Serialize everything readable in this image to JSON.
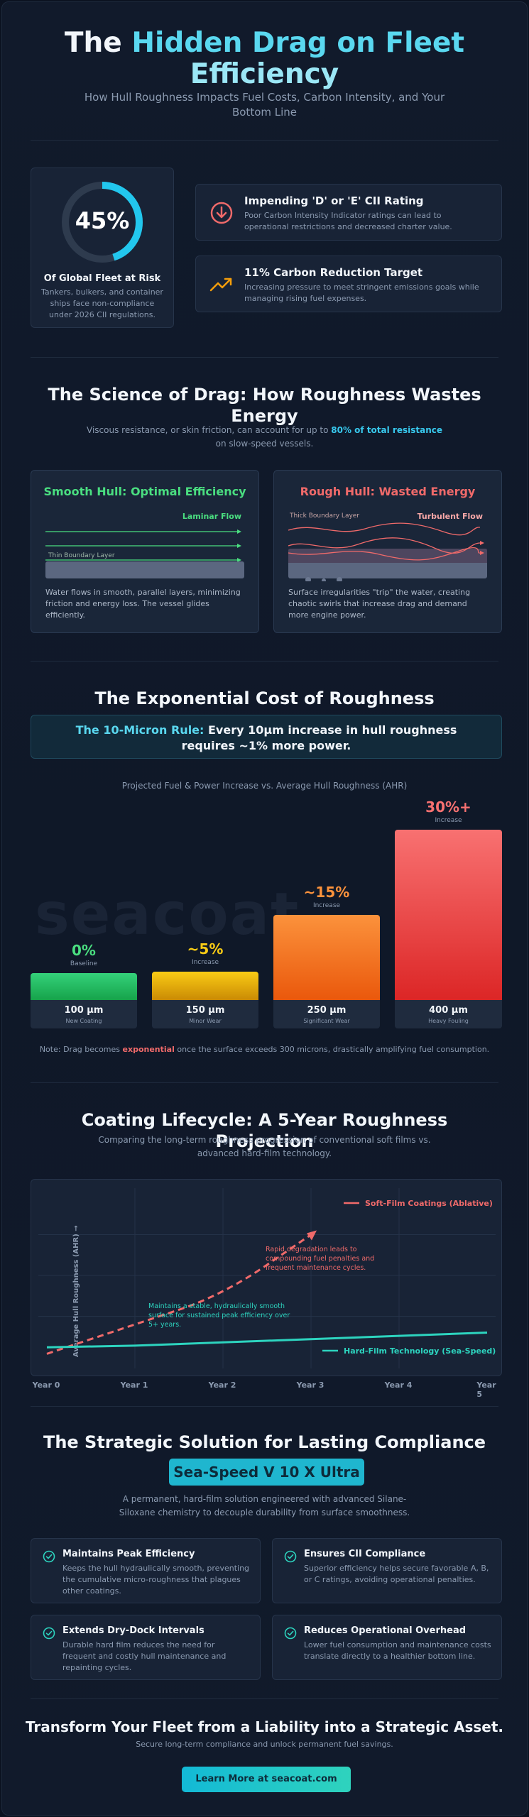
{
  "hero": {
    "title_part1": "The ",
    "title_accent": "Hidden Drag on Fleet",
    "title_accent2": "Efficiency",
    "subtitle": "How Hull Roughness Impacts Fuel Costs, Carbon Intensity, and Your Bottom Line"
  },
  "stat": {
    "value": "45%",
    "fraction": 0.45,
    "label": "Of Global Fleet at Risk",
    "description": "Tankers, bulkers, and container ships face non-compliance under 2026 CII regulations."
  },
  "alerts": [
    {
      "icon": "arrow-down-circle-icon",
      "title": "Impending 'D' or 'E' CII Rating",
      "description": "Poor Carbon Intensity Indicator ratings can lead to operational restrictions and decreased charter value."
    },
    {
      "icon": "trend-up-icon",
      "title": "11% Carbon Reduction Target",
      "description": "Increasing pressure to meet stringent emissions goals while managing rising fuel expenses."
    }
  ],
  "science": {
    "title": "The Science of Drag: How Roughness Wastes Energy",
    "subtitle_pre": "Viscous resistance, or skin friction, can account for up to ",
    "subtitle_hl": "80% of total resistance",
    "subtitle_post": " on slow-speed vessels.",
    "smooth": {
      "title": "Smooth Hull: Optimal Efficiency",
      "flow_label": "Laminar Flow",
      "layer_label": "Thin Boundary Layer",
      "description": "Water flows in smooth, parallel layers, minimizing friction and energy loss. The vessel glides efficiently."
    },
    "rough": {
      "title": "Rough Hull: Wasted Energy",
      "flow_label": "Turbulent Flow",
      "layer_label": "Thick Boundary Layer",
      "description": "Surface irregularities \"trip\" the water, creating chaotic swirls that increase drag and demand more engine power."
    }
  },
  "cost": {
    "title": "The Exponential Cost of Roughness",
    "rule_hl": "The 10-Micron Rule:",
    "rule_text": " Every 10μm increase in hull roughness requires ~1% more power.",
    "note_pre": "Note: Drag becomes ",
    "note_hl": "exponential",
    "note_post": " once the surface exceeds 300 microns, drastically amplifying fuel consumption.",
    "watermark": "seacoat"
  },
  "chart_data": [
    {
      "type": "bar",
      "title": "Projected Fuel & Power Increase vs. Average Hull Roughness (AHR)",
      "categories": [
        "100 μm",
        "150 μm",
        "250 μm",
        "400 μm"
      ],
      "category_sublabels": [
        "New Coating",
        "Minor Wear",
        "Significant Wear",
        "Heavy Fouling"
      ],
      "values": [
        0,
        5,
        15,
        30
      ],
      "value_labels": [
        "0%",
        "~5%",
        "~15%",
        "30%+"
      ],
      "value_sublabels": [
        "Baseline",
        "Increase",
        "Increase",
        "Increase"
      ],
      "colors": [
        "#22c55e",
        "#eab308",
        "#f97316",
        "#ef4444"
      ],
      "ylim": [
        0,
        30
      ]
    },
    {
      "type": "line",
      "title": "Coating Lifecycle: A 5-Year Roughness Projection",
      "subtitle": "Comparing the long-term roughness progression of conventional soft films vs. advanced hard-film technology.",
      "x": [
        "Year 0",
        "Year 1",
        "Year 2",
        "Year 3",
        "Year 4",
        "Year 5"
      ],
      "ylabel": "Average Hull Roughness (AHR) →",
      "series": [
        {
          "name": "Soft-Film Coatings (Ablative)",
          "color": "#f06a6a",
          "dashed": true,
          "values": [
            0.02,
            0.2,
            0.38,
            0.75,
            null,
            null
          ]
        },
        {
          "name": "Hard-Film Technology (Sea-Speed)",
          "color": "#2dd4bf",
          "dashed": false,
          "values": [
            0.06,
            0.07,
            0.09,
            0.11,
            0.13,
            0.15
          ]
        }
      ],
      "annotations": [
        "Rapid degradation leads to compounding fuel penalties and frequent maintenance cycles.",
        "Maintains a stable, hydraulically smooth surface for sustained peak efficiency over 5+ years."
      ]
    }
  ],
  "solution": {
    "title": "The Strategic Solution for Lasting Compliance",
    "product": "Sea-Speed V 10 X Ultra",
    "description": "A permanent, hard-film solution engineered with advanced Silane-Siloxane chemistry to decouple durability from surface smoothness.",
    "features": [
      {
        "title": "Maintains Peak Efficiency",
        "description": "Keeps the hull hydraulically smooth, preventing the cumulative micro-roughness that plagues other coatings."
      },
      {
        "title": "Ensures CII Compliance",
        "description": "Superior efficiency helps secure favorable A, B, or C ratings, avoiding operational penalties."
      },
      {
        "title": "Extends Dry-Dock Intervals",
        "description": "Durable hard film reduces the need for frequent and costly hull maintenance and repainting cycles."
      },
      {
        "title": "Reduces Operational Overhead",
        "description": "Lower fuel consumption and maintenance costs translate directly to a healthier bottom line."
      }
    ]
  },
  "cta": {
    "title": "Transform Your Fleet from a Liability into a Strategic Asset.",
    "subtitle": "Secure long-term compliance and unlock permanent fuel savings.",
    "button": "Learn More at seacoat.com"
  },
  "colors": {
    "accent": "#38c9ee",
    "smooth": "#4ade80",
    "rough": "#f06a6a",
    "ring_track": "#2e3b4e",
    "ring_fill": "#22c7ee"
  }
}
